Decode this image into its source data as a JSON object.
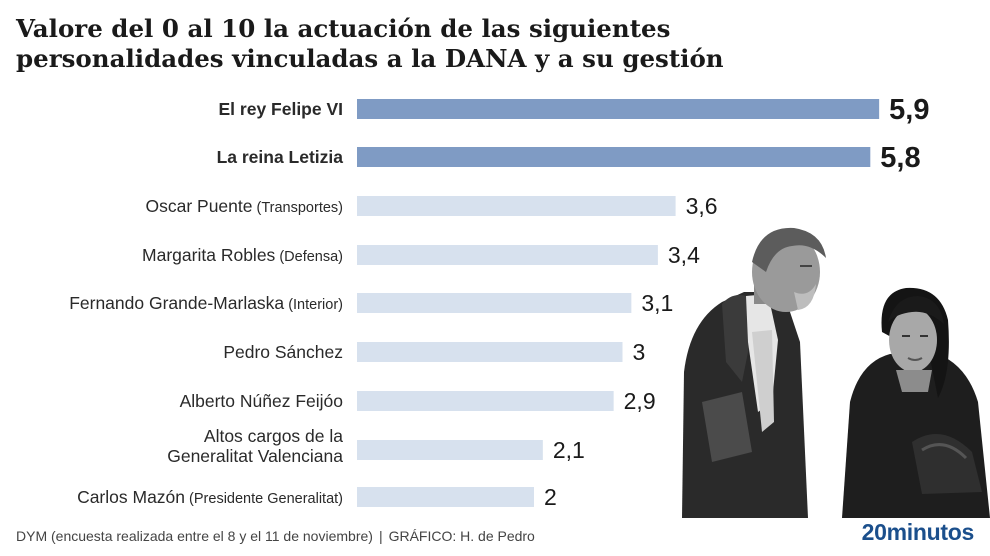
{
  "title": "Valore del 0 al 10 la actuación de las siguientes personalidades vinculadas a la DANA y a su gestión",
  "chart_data": {
    "type": "bar",
    "orientation": "horizontal",
    "title": "Valore del 0 al 10 la actuación de las siguientes personalidades vinculadas a la DANA y a su gestión",
    "xlim": [
      0,
      10
    ],
    "grid": false,
    "categories": [
      {
        "name": "El rey Felipe VI",
        "detail": "",
        "highlight": true
      },
      {
        "name": "La reina Letizia",
        "detail": "",
        "highlight": true
      },
      {
        "name": "Oscar Puente",
        "detail": "(Transportes)",
        "highlight": false
      },
      {
        "name": "Margarita Robles",
        "detail": "(Defensa)",
        "highlight": false
      },
      {
        "name": "Fernando Grande-Marlaska",
        "detail": "(Interior)",
        "highlight": false
      },
      {
        "name": "Pedro Sánchez",
        "detail": "",
        "highlight": false
      },
      {
        "name": "Alberto Núñez Feijóo",
        "detail": "",
        "highlight": false
      },
      {
        "name": "Altos cargos de la\nGeneralitat Valenciana",
        "detail": "",
        "highlight": false
      },
      {
        "name": "Carlos Mazón",
        "detail": "(Presidente Generalitat)",
        "highlight": false
      }
    ],
    "values": [
      5.9,
      5.8,
      3.6,
      3.4,
      3.1,
      3,
      2.9,
      2.1,
      2
    ],
    "value_labels": [
      "5,9",
      "5,8",
      "3,6",
      "3,4",
      "3,1",
      "3",
      "2,9",
      "2,1",
      "2"
    ],
    "colors": {
      "highlight": "#7f9bc4",
      "normal": "#d7e1ee"
    }
  },
  "footer": {
    "source": "DYM (encuesta realizada entre el 8 y el 11 de noviembre)",
    "separator": "|",
    "credit": "GRÁFICO: H. de Pedro"
  },
  "brand": "20minutos",
  "photo": {
    "description_icon": "photo-king-and-queen"
  }
}
